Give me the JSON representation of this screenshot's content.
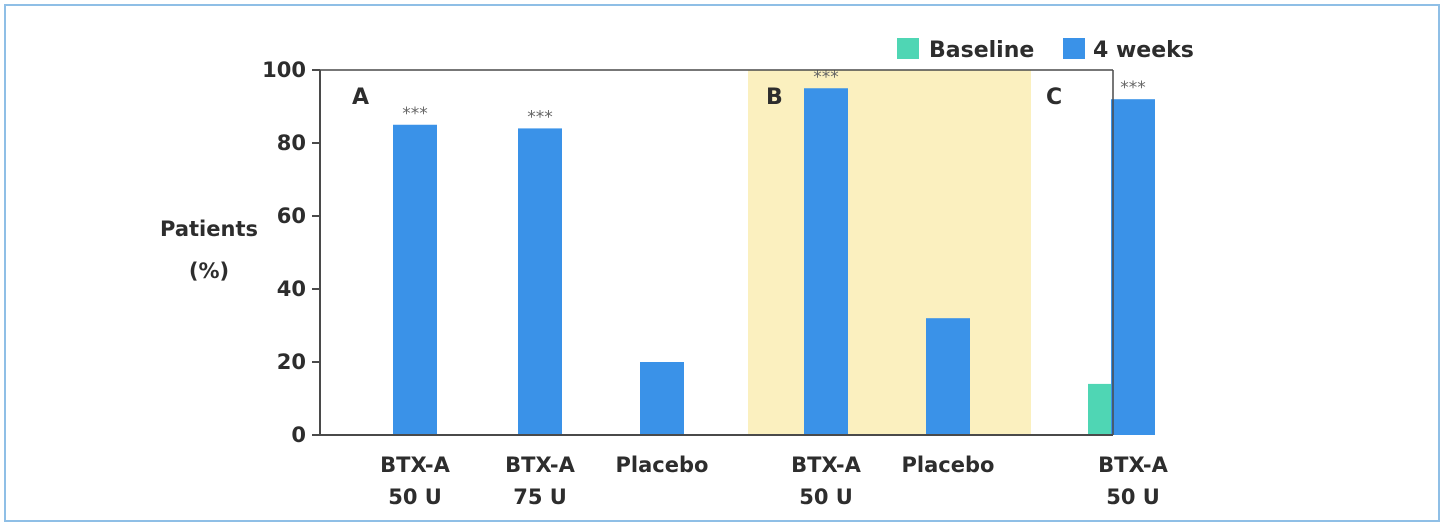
{
  "chart_data": {
    "type": "bar",
    "title": "",
    "ylabel_lines": [
      "Patients",
      "(%)"
    ],
    "ylim": [
      0,
      100
    ],
    "yticks": [
      "0",
      "20",
      "40",
      "60",
      "80",
      "100"
    ],
    "grid": false,
    "legend_position": "top-right",
    "series": [
      {
        "name": "Baseline",
        "color": "#4fd6b4"
      },
      {
        "name": "4 weeks",
        "color": "#3a92e8"
      }
    ],
    "panels": [
      {
        "letter": "A",
        "shaded": false,
        "shade_color": ""
      },
      {
        "letter": "B",
        "shaded": true,
        "shade_color": "#fbf0bf"
      },
      {
        "letter": "C",
        "shaded": false,
        "shade_color": ""
      }
    ],
    "groups": [
      {
        "panel": "A",
        "label_lines": [
          "BTX-A",
          "50 U"
        ],
        "baseline": null,
        "week4": 85,
        "sig": "***"
      },
      {
        "panel": "A",
        "label_lines": [
          "BTX-A",
          "75 U"
        ],
        "baseline": null,
        "week4": 84,
        "sig": "***"
      },
      {
        "panel": "A",
        "label_lines": [
          "Placebo",
          ""
        ],
        "baseline": null,
        "week4": 20,
        "sig": ""
      },
      {
        "panel": "B",
        "label_lines": [
          "BTX-A",
          "50 U"
        ],
        "baseline": null,
        "week4": 95,
        "sig": "***"
      },
      {
        "panel": "B",
        "label_lines": [
          "Placebo",
          ""
        ],
        "baseline": null,
        "week4": 32,
        "sig": ""
      },
      {
        "panel": "C",
        "label_lines": [
          "BTX-A",
          "50 U"
        ],
        "baseline": 14,
        "week4": 92,
        "sig": "***"
      }
    ]
  }
}
